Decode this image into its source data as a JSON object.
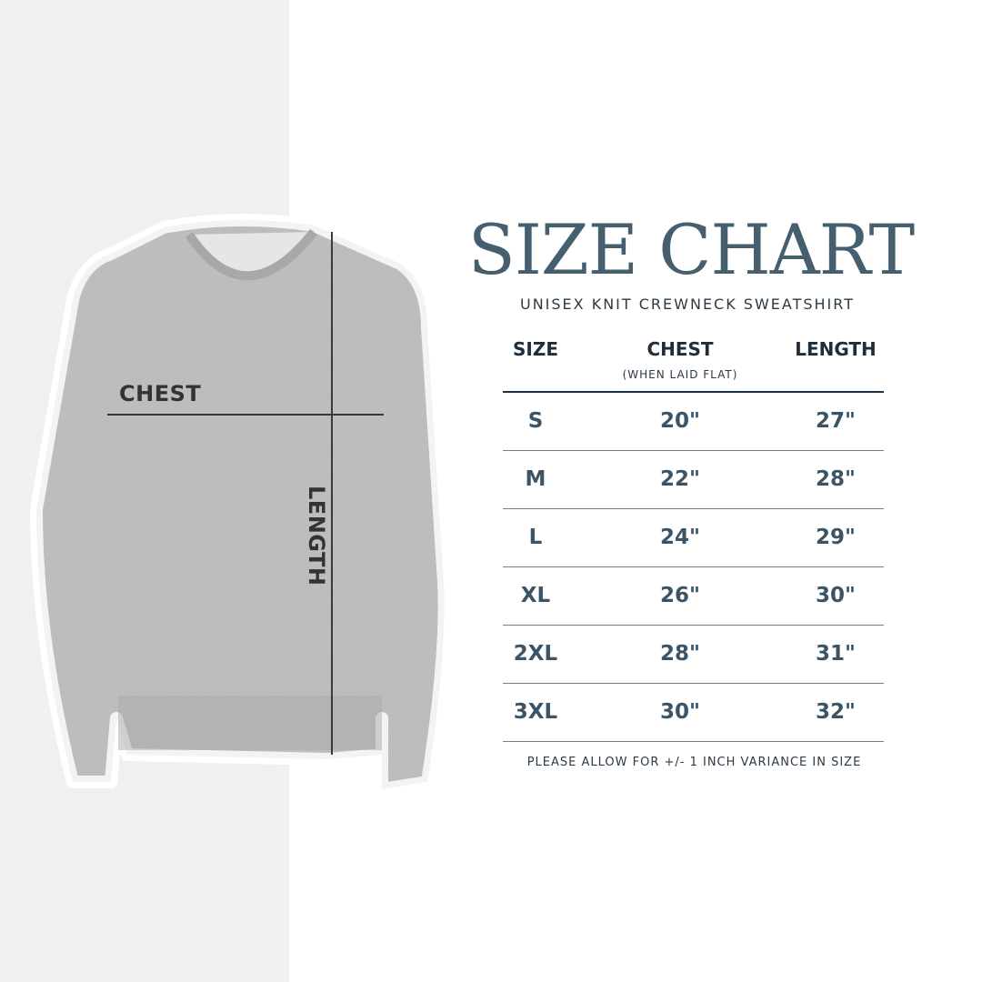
{
  "title": "SIZE CHART",
  "subtitle": "UNISEX KNIT CREWNECK SWEATSHIRT",
  "diagram": {
    "chest_label": "CHEST",
    "length_label": "LENGTH"
  },
  "table": {
    "headers": [
      "SIZE",
      "CHEST",
      "LENGTH"
    ],
    "chest_note": "(WHEN LAID FLAT)",
    "rows": [
      [
        "S",
        "20\"",
        "27\""
      ],
      [
        "M",
        "22\"",
        "28\""
      ],
      [
        "L",
        "24\"",
        "29\""
      ],
      [
        "XL",
        "26\"",
        "30\""
      ],
      [
        "2XL",
        "28\"",
        "31\""
      ],
      [
        "3XL",
        "30\"",
        "32\""
      ]
    ]
  },
  "footer": "PLEASE ALLOW FOR +/- 1 INCH VARIANCE IN SIZE",
  "colors": {
    "title": "#465f6e",
    "values": "#3b5566",
    "panel": "#f0f0f0"
  }
}
